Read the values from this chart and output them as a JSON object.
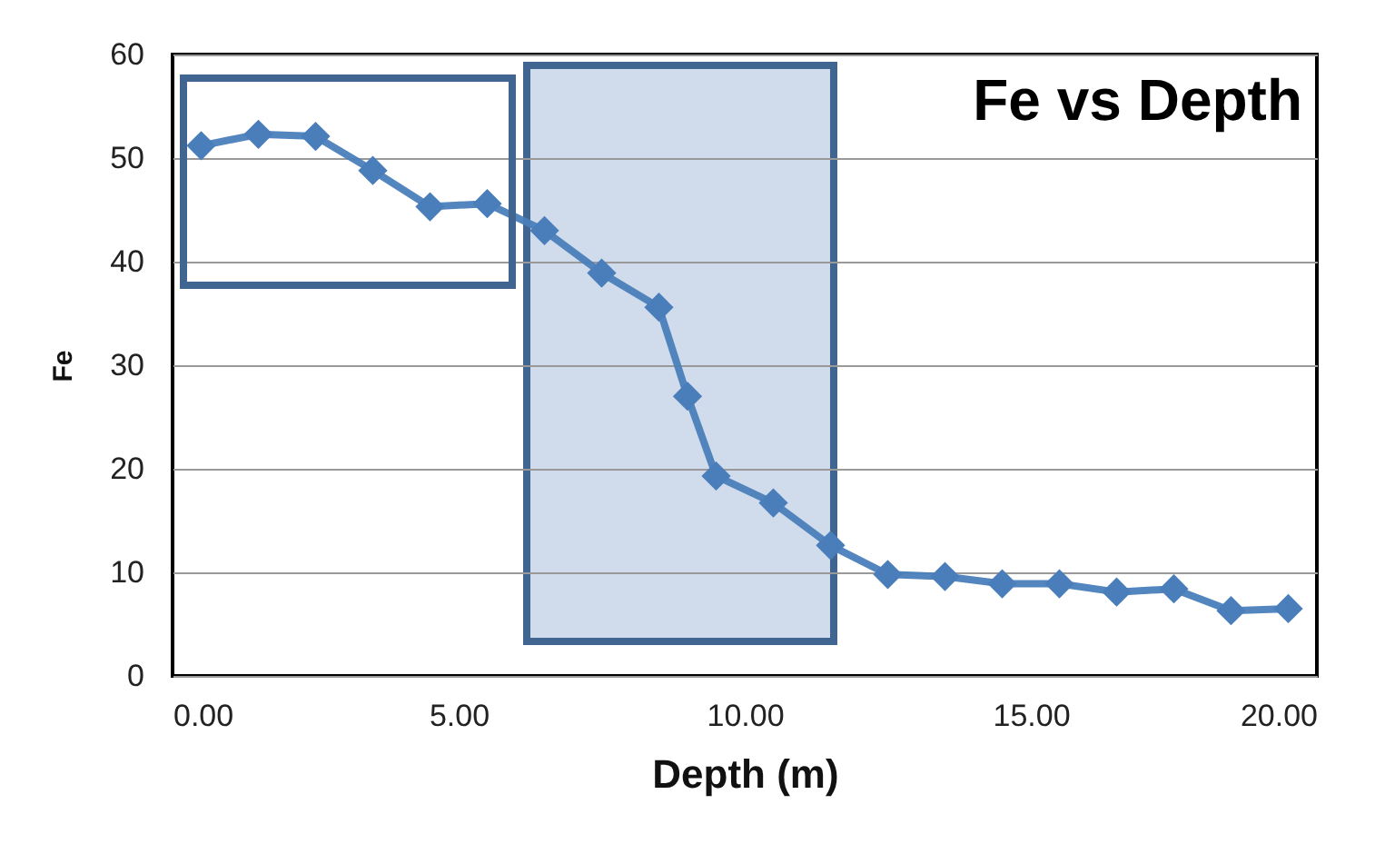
{
  "chart_data": {
    "type": "line",
    "title": "Fe vs Depth",
    "xlabel": "Depth (m)",
    "ylabel": "Fe",
    "x": [
      0.5,
      1.5,
      2.5,
      3.5,
      4.5,
      5.5,
      6.5,
      7.5,
      8.5,
      9,
      9.5,
      10.5,
      11.5,
      12.5,
      13.5,
      14.5,
      15.5,
      16.5,
      17.5,
      18.5,
      19.5
    ],
    "series": [
      {
        "color": "#4a7ebb",
        "values": [
          51.2,
          52.3,
          52.1,
          48.8,
          45.3,
          45.6,
          43.0,
          38.9,
          35.6,
          27.0,
          19.3,
          16.7,
          12.6,
          9.8,
          9.6,
          8.9,
          8.9,
          8.1,
          8.4,
          6.3,
          6.5
        ]
      }
    ],
    "xlim": [
      0,
      20
    ],
    "xticks": [
      {
        "value": 0,
        "label": "0.00"
      },
      {
        "value": 5,
        "label": "5.00"
      },
      {
        "value": 10,
        "label": "10.00"
      },
      {
        "value": 15,
        "label": "15.00"
      },
      {
        "value": 20,
        "label": "20.00"
      }
    ],
    "ylim": [
      0,
      60
    ],
    "yticks": [
      0,
      10,
      20,
      30,
      40,
      50,
      60
    ],
    "grid": "y",
    "marker": "diamond",
    "line_style": "solid"
  }
}
